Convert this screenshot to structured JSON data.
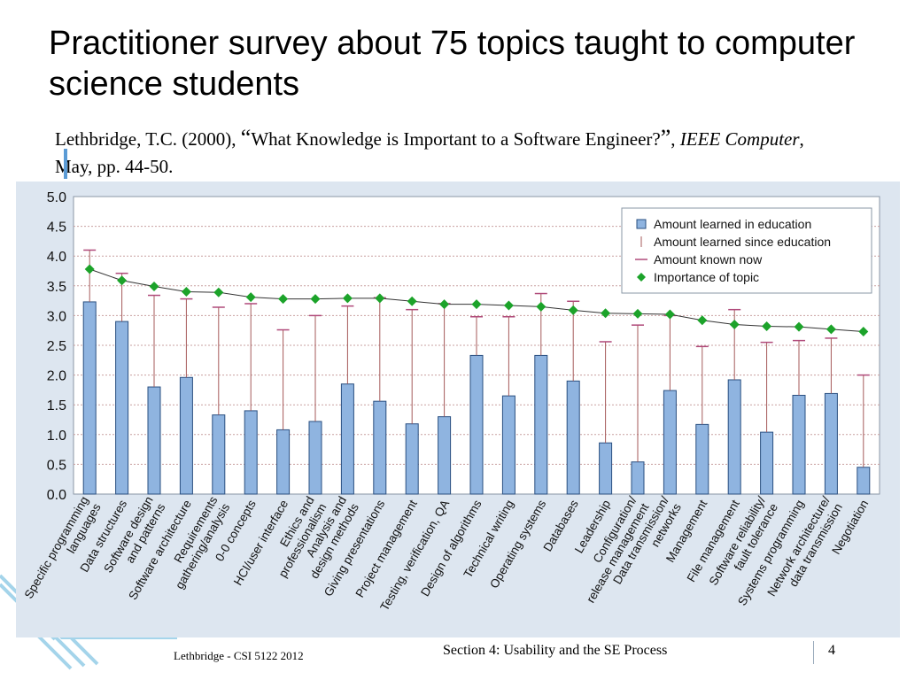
{
  "slide": {
    "title": "Practitioner survey about 75 topics taught to computer science students",
    "citation": {
      "authors_year": "Lethbridge, T.C. (2000), ",
      "open_quote": "“",
      "article": "What Knowledge is Important to a Software Engineer?",
      "close_quote": "”",
      "sep": ", ",
      "journal": "IEEE Computer",
      "rest": ", May, pp. 44-50."
    }
  },
  "footer": {
    "left": "Lethbridge - CSI 5122 2012",
    "center": "Section 4: Usability and the SE Process",
    "page": "4"
  },
  "chart_data": {
    "type": "bar",
    "title": "",
    "xlabel": "",
    "ylabel": "",
    "ylim": [
      0,
      5
    ],
    "yticks": [
      "0.0",
      "0.5",
      "1.0",
      "1.5",
      "2.0",
      "2.5",
      "3.0",
      "3.5",
      "4.0",
      "4.5",
      "5.0"
    ],
    "grid": true,
    "legend_position": "top-right",
    "colors": {
      "bar": "#8fb4e0",
      "bar_stroke": "#2a4f80",
      "range": "#a65a5a",
      "line": "#333333",
      "marker": "#1ca32a"
    },
    "categories": [
      [
        "Specific programming",
        "languages"
      ],
      [
        "Data structures"
      ],
      [
        "Software design",
        "and patterns"
      ],
      [
        "Software architecture"
      ],
      [
        "Requirements",
        "gathering/analysis"
      ],
      [
        "0-0 concepts"
      ],
      [
        "HCI/user interface"
      ],
      [
        "Ethics and",
        "professionalism"
      ],
      [
        "Analysis and",
        "design methods"
      ],
      [
        "Giving presentations"
      ],
      [
        "Project management"
      ],
      [
        "Testing, verification, QA"
      ],
      [
        "Design of algorithms"
      ],
      [
        "Technical writing"
      ],
      [
        "Operating systems"
      ],
      [
        "Databases"
      ],
      [
        "Leadership"
      ],
      [
        "Configuration/",
        "release management"
      ],
      [
        "Data transmission/",
        "networks"
      ],
      [
        "Management"
      ],
      [
        "File management"
      ],
      [
        "Software reliability/",
        "fault tolerance"
      ],
      [
        "Systems programming"
      ],
      [
        "Network architecture/",
        "data transmission"
      ],
      [
        "Negotiation"
      ]
    ],
    "series": [
      {
        "name": "Amount learned in education",
        "type": "bar",
        "values": [
          3.23,
          2.9,
          1.8,
          1.96,
          1.33,
          1.4,
          1.08,
          1.22,
          1.85,
          1.56,
          1.18,
          1.3,
          2.33,
          1.65,
          2.33,
          1.9,
          0.86,
          0.54,
          1.74,
          1.17,
          1.92,
          1.04,
          1.66,
          1.69,
          0.45
        ]
      },
      {
        "name": "Amount learned since education",
        "type": "range"
      },
      {
        "name": "Amount known now",
        "type": "range-cap",
        "values": [
          4.1,
          3.71,
          3.34,
          3.28,
          3.14,
          3.2,
          2.76,
          3.0,
          3.16,
          3.3,
          3.1,
          3.2,
          2.98,
          2.98,
          3.37,
          3.24,
          2.56,
          2.84,
          3.0,
          2.48,
          3.1,
          2.55,
          2.58,
          2.62,
          2.0
        ]
      },
      {
        "name": "Importance of topic",
        "type": "line",
        "values": [
          3.78,
          3.59,
          3.49,
          3.4,
          3.39,
          3.31,
          3.28,
          3.28,
          3.29,
          3.29,
          3.24,
          3.19,
          3.19,
          3.17,
          3.15,
          3.09,
          3.04,
          3.03,
          3.02,
          2.92,
          2.85,
          2.82,
          2.81,
          2.77,
          2.73
        ]
      }
    ]
  }
}
